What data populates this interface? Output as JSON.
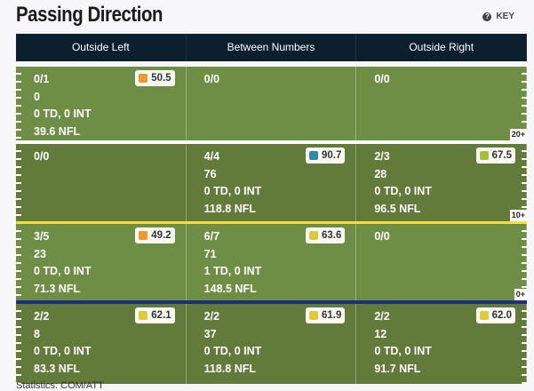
{
  "title": "Passing Direction",
  "key_label": "KEY",
  "columns": [
    "Outside Left",
    "Between Numbers",
    "Outside Right"
  ],
  "rows": [
    {
      "yard": "20+",
      "cells": [
        {
          "lines": [
            "0/1",
            "0",
            "0 TD, 0 INT",
            "39.6 NFL"
          ],
          "grade": "50.5",
          "color": "#f0982f"
        },
        {
          "lines": [
            "0/0"
          ]
        },
        {
          "lines": [
            "0/0"
          ]
        }
      ]
    },
    {
      "yard": "10+",
      "cells": [
        {
          "lines": [
            "0/0"
          ]
        },
        {
          "lines": [
            "4/4",
            "76",
            "0 TD, 0 INT",
            "118.8 NFL"
          ],
          "grade": "90.7",
          "color": "#2f8ca8"
        },
        {
          "lines": [
            "2/3",
            "28",
            "0 TD, 0 INT",
            "96.5 NFL"
          ],
          "grade": "67.5",
          "color": "#a5c13a"
        }
      ]
    },
    {
      "yard": "0+",
      "cells": [
        {
          "lines": [
            "3/5",
            "23",
            "0 TD, 0 INT",
            "71.3 NFL"
          ],
          "grade": "49.2",
          "color": "#f0982f"
        },
        {
          "lines": [
            "6/7",
            "71",
            "1 TD, 0 INT",
            "148.5 NFL"
          ],
          "grade": "63.6",
          "color": "#e3c93a"
        },
        {
          "lines": [
            "0/0"
          ]
        }
      ]
    },
    {
      "yard": "",
      "cells": [
        {
          "lines": [
            "2/2",
            "8",
            "0 TD, 0 INT",
            "83.3 NFL"
          ],
          "grade": "62.1",
          "color": "#e3c93a"
        },
        {
          "lines": [
            "2/2",
            "37",
            "0 TD, 0 INT",
            "118.8 NFL"
          ],
          "grade": "61.9",
          "color": "#e3c93a"
        },
        {
          "lines": [
            "2/2",
            "12",
            "0 TD, 0 INT",
            "91.7 NFL"
          ],
          "grade": "62.0",
          "color": "#e3c93a"
        }
      ]
    }
  ],
  "footer": "Statistics: COM/ATT"
}
